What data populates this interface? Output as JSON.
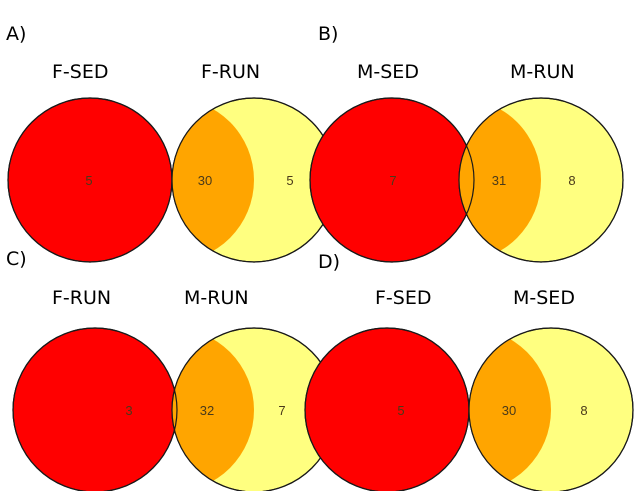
{
  "colors": {
    "left_only": "#ff0000",
    "right_only": "#ffff80",
    "overlap": "#ffa500",
    "outline": "#1a1a1a"
  },
  "panels": [
    {
      "letter": "A)",
      "left_label": "F-SED",
      "right_label": "F-RUN",
      "left_only": "5",
      "overlap": "30",
      "right_only": "5"
    },
    {
      "letter": "B)",
      "left_label": "M-SED",
      "right_label": "M-RUN",
      "left_only": "7",
      "overlap": "31",
      "right_only": "8"
    },
    {
      "letter": "C)",
      "left_label": "F-RUN",
      "right_label": "M-RUN",
      "left_only": "3",
      "overlap": "32",
      "right_only": "7"
    },
    {
      "letter": "D)",
      "left_label": "F-SED",
      "right_label": "M-SED",
      "left_only": "5",
      "overlap": "30",
      "right_only": "8"
    }
  ]
}
